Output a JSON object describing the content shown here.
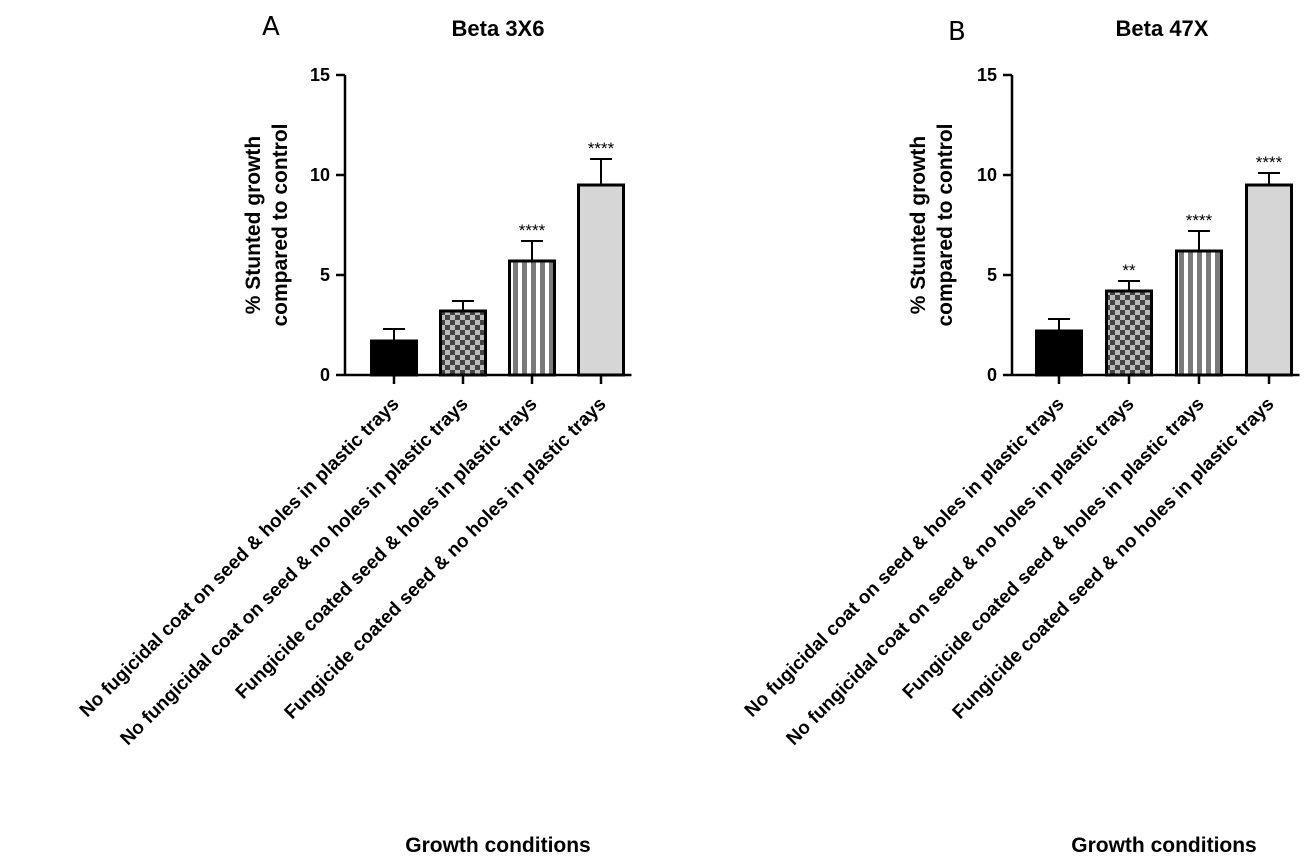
{
  "chart_data": [
    {
      "type": "bar",
      "panel": "A",
      "title": "Beta 3X6",
      "xlabel": "Growth conditions",
      "ylabel_lines": [
        "% Stunted growth",
        "compared to control"
      ],
      "ylim": [
        0,
        15
      ],
      "yticks": [
        "0",
        "5",
        "10",
        "15"
      ],
      "categories": [
        "No fugicidal coat on seed & holes in plastic trays",
        "No fungicidal coat on seed & no holes in plastic trays",
        "Fungicide coated seed & holes in plastic trays",
        "Fungicide coated seed & no holes in plastic trays"
      ],
      "values": [
        1.7,
        3.2,
        5.7,
        9.5
      ],
      "errors": [
        0.6,
        0.5,
        1.0,
        1.3
      ],
      "significance": [
        "",
        "",
        "****",
        "****"
      ],
      "fills": [
        "solid-black",
        "checker",
        "vertical-stripes",
        "light-gray"
      ],
      "grid": false
    },
    {
      "type": "bar",
      "panel": "B",
      "title": "Beta 47X",
      "xlabel": "Growth conditions",
      "ylabel_lines": [
        "% Stunted growth",
        "compared to control"
      ],
      "ylim": [
        0,
        15
      ],
      "yticks": [
        "0",
        "5",
        "10",
        "15"
      ],
      "categories": [
        "No fugicidal coat on seed & holes in plastic trays",
        "No fungicidal coat on seed & no holes in plastic trays",
        "Fungicide coated seed & holes in plastic trays",
        "Fungicide coated seed & no holes in plastic trays"
      ],
      "values": [
        2.2,
        4.2,
        6.2,
        9.5
      ],
      "errors": [
        0.6,
        0.5,
        1.0,
        0.6
      ],
      "significance": [
        "",
        "**",
        "****",
        "****"
      ],
      "fills": [
        "solid-black",
        "checker",
        "vertical-stripes",
        "light-gray"
      ],
      "grid": false
    }
  ],
  "colors": {
    "axis": "#000000",
    "bar_black": "#000000",
    "checker_dark": "#444444",
    "checker_light": "#bbbbbb",
    "stripe_dark": "#7a7a7a",
    "stripe_light": "#ffffff",
    "light_gray": "#d6d6d6"
  }
}
